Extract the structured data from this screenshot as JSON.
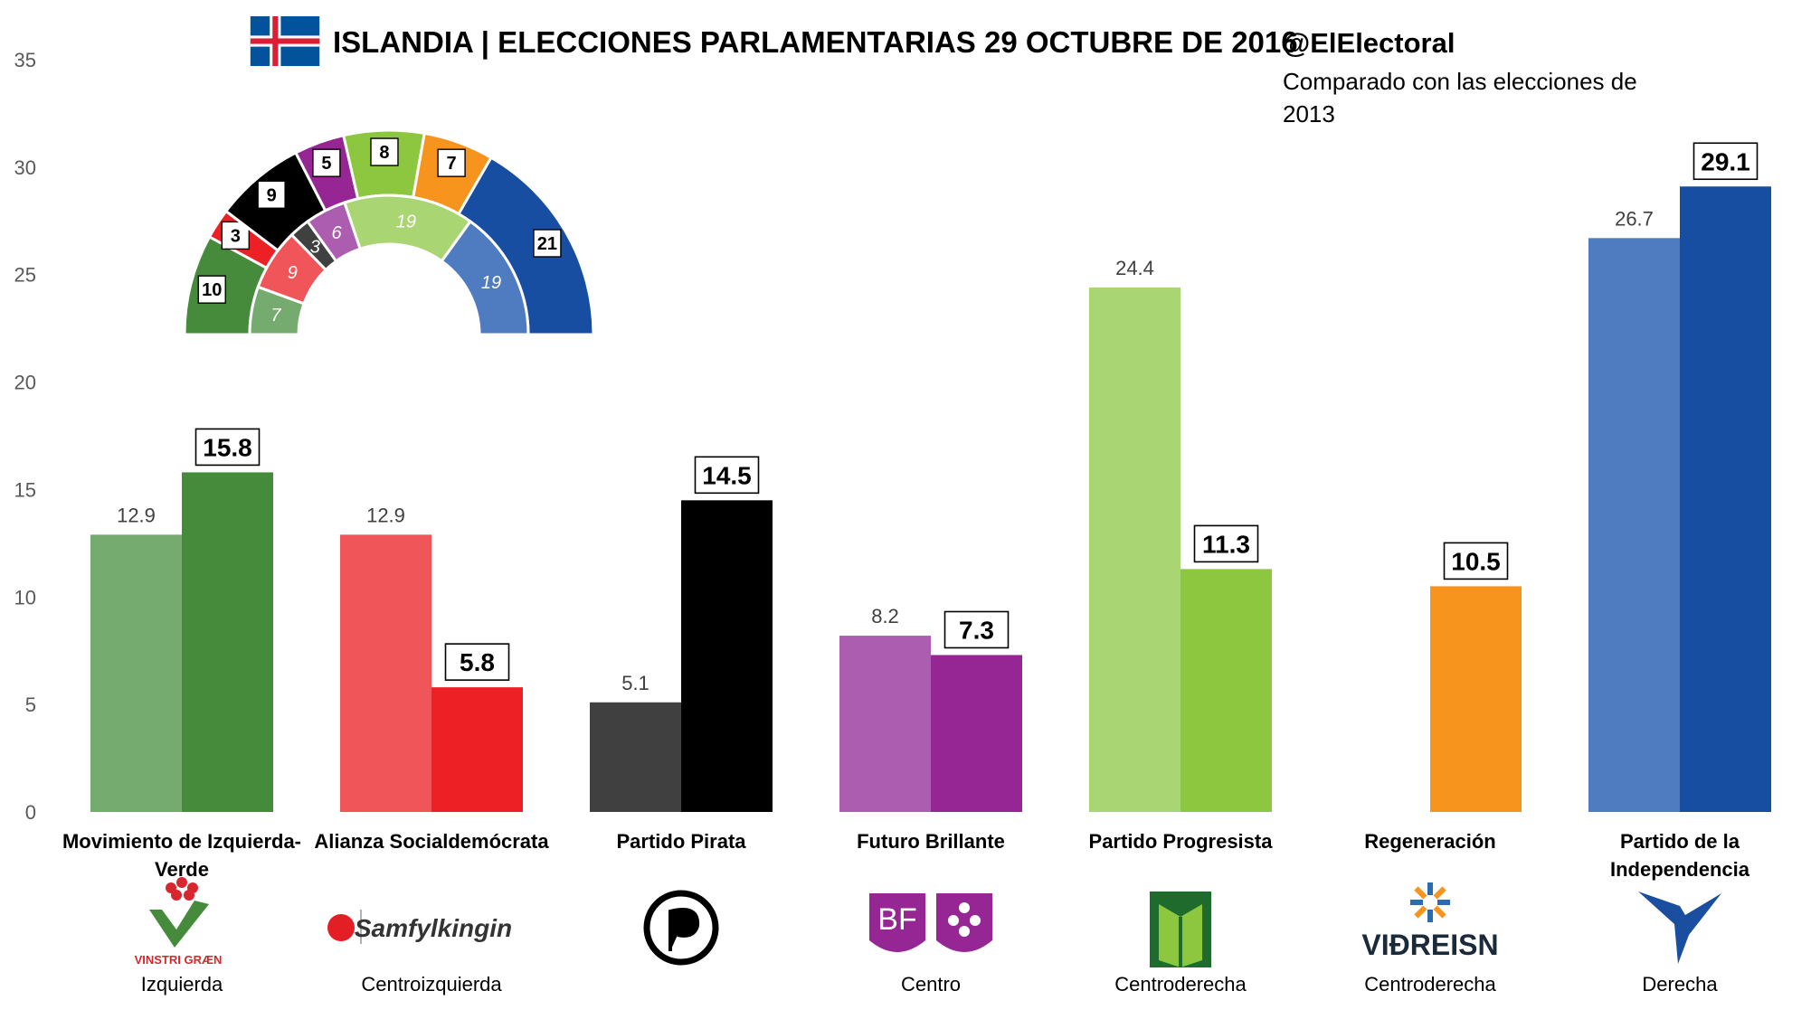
{
  "header": {
    "title": "ISLANDIA | ELECCIONES PARLAMENTARIAS 29 OCTUBRE DE 2016",
    "handle": "@ElElectoral",
    "subtitle": "Comparado con las elecciones de 2013"
  },
  "colors": {
    "flag_blue": "#02529C",
    "flag_red": "#DC1E35",
    "flag_white": "#FFFFFF"
  },
  "chart_data": {
    "type": "bar",
    "ylim": [
      0,
      35
    ],
    "yticks": [
      0,
      5,
      10,
      15,
      20,
      25,
      30,
      35
    ],
    "grid": false,
    "series": [
      {
        "year": "2013",
        "values": [
          12.9,
          12.9,
          5.1,
          8.2,
          24.4,
          null,
          26.7
        ]
      },
      {
        "year": "2016",
        "values": [
          15.8,
          5.8,
          14.5,
          7.3,
          11.3,
          10.5,
          29.1
        ]
      }
    ],
    "parties": [
      {
        "name_lines": [
          "Movimiento de Izquierda-",
          "Verde"
        ],
        "ideology": "Izquierda",
        "color_2013": "#76AB6F",
        "color_2016": "#468B3C",
        "logo": "vinstri-graen-logo",
        "logo_text": "VINSTRI GRÆN"
      },
      {
        "name_lines": [
          "Alianza Socialdemócrata"
        ],
        "ideology": "Centroizquierda",
        "color_2013": "#F0555A",
        "color_2016": "#EC2025",
        "logo": "samfylkingin-logo",
        "logo_text": "Samfylkingin"
      },
      {
        "name_lines": [
          "Partido Pirata"
        ],
        "ideology": "",
        "color_2013": "#404040",
        "color_2016": "#000000",
        "logo": "pirate-party-logo",
        "logo_text": ""
      },
      {
        "name_lines": [
          "Futuro Brillante"
        ],
        "ideology": "Centro",
        "color_2013": "#AD5DB0",
        "color_2016": "#952694",
        "logo": "bjort-framtid-logo",
        "logo_text": "BF"
      },
      {
        "name_lines": [
          "Partido Progresista"
        ],
        "ideology": "Centroderecha",
        "color_2013": "#A9D672",
        "color_2016": "#8DC63F",
        "logo": "framsokn-logo",
        "logo_text": ""
      },
      {
        "name_lines": [
          "Regeneración"
        ],
        "ideology": "Centroderecha",
        "color_2013": "#F7941D",
        "color_2016": "#F7941D",
        "logo": "vidreisn-logo",
        "logo_text": "VIÐREISN"
      },
      {
        "name_lines": [
          "Partido de la",
          "Independencia"
        ],
        "ideology": "Derecha",
        "color_2013": "#4F7CC0",
        "color_2016": "#174EA1",
        "logo": "sjalfstaedisflokkurinn-logo",
        "logo_text": ""
      }
    ],
    "seats": {
      "outer_2016": [
        {
          "seats": 10,
          "color": "#468B3C"
        },
        {
          "seats": 3,
          "color": "#EC2025"
        },
        {
          "seats": 9,
          "color": "#000000"
        },
        {
          "seats": 5,
          "color": "#952694"
        },
        {
          "seats": 8,
          "color": "#8DC63F"
        },
        {
          "seats": 7,
          "color": "#F7941D"
        },
        {
          "seats": 21,
          "color": "#174EA1"
        }
      ],
      "inner_2013": [
        {
          "seats": 7,
          "color": "#76AB6F"
        },
        {
          "seats": 9,
          "color": "#F0555A"
        },
        {
          "seats": 3,
          "color": "#404040"
        },
        {
          "seats": 6,
          "color": "#AD5DB0"
        },
        {
          "seats": 19,
          "color": "#A9D672"
        },
        {
          "seats": 19,
          "color": "#4F7CC0"
        }
      ]
    }
  }
}
